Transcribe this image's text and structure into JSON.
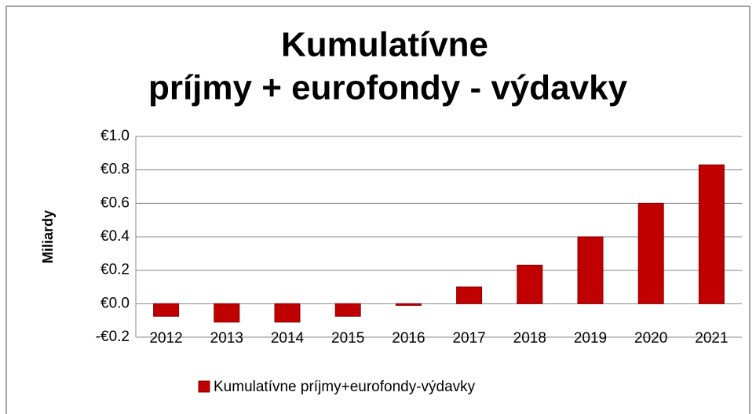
{
  "chart_data": {
    "type": "bar",
    "title": [
      "Kumulatívne",
      "príjmy + eurofondy - výdavky"
    ],
    "y_label": "Miliardy",
    "categories": [
      "2012",
      "2013",
      "2014",
      "2015",
      "2016",
      "2017",
      "2018",
      "2019",
      "2020",
      "2021"
    ],
    "series": [
      {
        "name": "Kumulatívne príjmy+eurofondy-výdavky",
        "color": "#c00000",
        "values": [
          -0.075,
          -0.11,
          -0.11,
          -0.075,
          -0.01,
          0.1,
          0.23,
          0.4,
          0.6,
          0.83
        ]
      }
    ],
    "ylim": [
      -0.2,
      1.0
    ],
    "yticks": [
      {
        "value": -0.2,
        "label": "-€0.2"
      },
      {
        "value": 0,
        "label": "€0.0"
      },
      {
        "value": 0.2,
        "label": "€0.2"
      },
      {
        "value": 0.4,
        "label": "€0.4"
      },
      {
        "value": 0.6,
        "label": "€0.6"
      },
      {
        "value": 0.8,
        "label": "€0.8"
      },
      {
        "value": 1.0,
        "label": "€1.0"
      }
    ],
    "grid": true,
    "legend": "bottom"
  }
}
